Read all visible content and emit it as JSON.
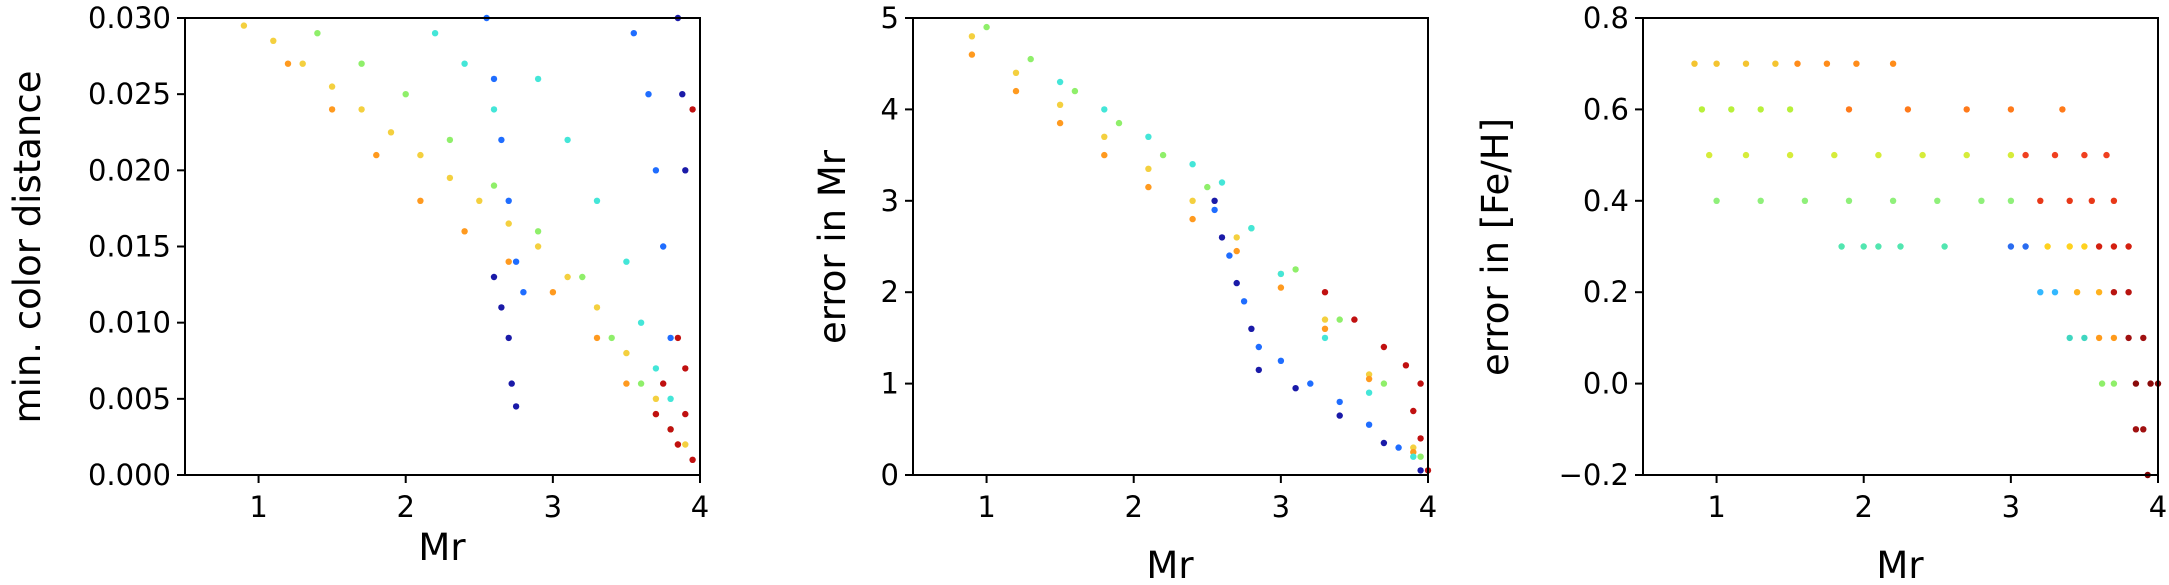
{
  "chart_data": [
    {
      "type": "scatter",
      "xlabel": "Mr",
      "ylabel": "min. color distance",
      "xlim": [
        0.5,
        4.0
      ],
      "ylim": [
        0.0,
        0.03
      ],
      "x_ticks": [
        1,
        2,
        3,
        4
      ],
      "x_tick_labels": [
        "1",
        "2",
        "3",
        "4"
      ],
      "y_ticks": [
        0.0,
        0.005,
        0.01,
        0.015,
        0.02,
        0.025,
        0.03
      ],
      "y_tick_labels": [
        "0.000",
        "0.005",
        "0.010",
        "0.015",
        "0.020",
        "0.025",
        "0.030"
      ],
      "colormap": "jet",
      "series": [
        {
          "color": "#f4d03f",
          "points": [
            [
              0.9,
              0.0295
            ],
            [
              1.1,
              0.0285
            ],
            [
              1.3,
              0.027
            ],
            [
              1.5,
              0.0255
            ],
            [
              1.7,
              0.024
            ],
            [
              1.9,
              0.0225
            ],
            [
              2.1,
              0.021
            ],
            [
              2.3,
              0.0195
            ],
            [
              2.5,
              0.018
            ],
            [
              2.7,
              0.0165
            ],
            [
              2.9,
              0.015
            ],
            [
              3.1,
              0.013
            ],
            [
              3.3,
              0.011
            ],
            [
              3.5,
              0.008
            ],
            [
              3.7,
              0.005
            ],
            [
              3.9,
              0.002
            ]
          ]
        },
        {
          "color": "#ff9a1f",
          "points": [
            [
              1.2,
              0.027
            ],
            [
              1.5,
              0.024
            ],
            [
              1.8,
              0.021
            ],
            [
              2.1,
              0.018
            ],
            [
              2.4,
              0.016
            ],
            [
              2.7,
              0.014
            ],
            [
              3.0,
              0.012
            ],
            [
              3.3,
              0.009
            ],
            [
              3.5,
              0.006
            ],
            [
              3.7,
              0.004
            ],
            [
              3.85,
              0.002
            ]
          ]
        },
        {
          "color": "#8fef6a",
          "points": [
            [
              1.4,
              0.029
            ],
            [
              1.7,
              0.027
            ],
            [
              2.0,
              0.025
            ],
            [
              2.3,
              0.022
            ],
            [
              2.6,
              0.019
            ],
            [
              2.9,
              0.016
            ],
            [
              3.2,
              0.013
            ],
            [
              3.4,
              0.009
            ],
            [
              3.6,
              0.006
            ],
            [
              3.8,
              0.003
            ]
          ]
        },
        {
          "color": "#44e6d8",
          "points": [
            [
              2.2,
              0.029
            ],
            [
              2.4,
              0.027
            ],
            [
              2.6,
              0.024
            ],
            [
              2.9,
              0.026
            ],
            [
              3.1,
              0.022
            ],
            [
              3.3,
              0.018
            ],
            [
              3.5,
              0.014
            ],
            [
              3.6,
              0.01
            ],
            [
              3.7,
              0.007
            ],
            [
              3.8,
              0.005
            ]
          ]
        },
        {
          "color": "#1f6dff",
          "points": [
            [
              2.55,
              0.03
            ],
            [
              2.6,
              0.026
            ],
            [
              2.65,
              0.022
            ],
            [
              2.7,
              0.018
            ],
            [
              2.75,
              0.014
            ],
            [
              2.8,
              0.012
            ],
            [
              3.55,
              0.029
            ],
            [
              3.65,
              0.025
            ],
            [
              3.7,
              0.02
            ],
            [
              3.75,
              0.015
            ],
            [
              3.8,
              0.009
            ]
          ]
        },
        {
          "color": "#1a1aa8",
          "points": [
            [
              2.6,
              0.013
            ],
            [
              2.65,
              0.011
            ],
            [
              2.7,
              0.009
            ],
            [
              2.72,
              0.006
            ],
            [
              2.75,
              0.0045
            ],
            [
              3.85,
              0.03
            ],
            [
              3.88,
              0.025
            ],
            [
              3.9,
              0.02
            ]
          ]
        },
        {
          "color": "#c01010",
          "points": [
            [
              3.7,
              0.004
            ],
            [
              3.8,
              0.003
            ],
            [
              3.85,
              0.002
            ],
            [
              3.9,
              0.004
            ],
            [
              3.95,
              0.001
            ],
            [
              3.75,
              0.006
            ],
            [
              3.9,
              0.007
            ],
            [
              3.85,
              0.009
            ],
            [
              3.95,
              0.024
            ]
          ]
        }
      ]
    },
    {
      "type": "scatter",
      "xlabel": "Mr",
      "ylabel": "error in Mr",
      "xlim": [
        0.5,
        4.0
      ],
      "ylim": [
        0,
        5
      ],
      "x_ticks": [
        1,
        2,
        3,
        4
      ],
      "x_tick_labels": [
        "1",
        "2",
        "3",
        "4"
      ],
      "y_ticks": [
        0,
        1,
        2,
        3,
        4,
        5
      ],
      "y_tick_labels": [
        "0",
        "1",
        "2",
        "3",
        "4",
        "5"
      ],
      "colormap": "jet",
      "series": [
        {
          "color": "#f4d03f",
          "points": [
            [
              0.9,
              4.8
            ],
            [
              1.2,
              4.4
            ],
            [
              1.5,
              4.05
            ],
            [
              1.8,
              3.7
            ],
            [
              2.1,
              3.35
            ],
            [
              2.4,
              3.0
            ],
            [
              2.7,
              2.6
            ],
            [
              3.0,
              2.2
            ],
            [
              3.3,
              1.7
            ],
            [
              3.6,
              1.1
            ],
            [
              3.9,
              0.3
            ]
          ]
        },
        {
          "color": "#ff9a1f",
          "points": [
            [
              0.9,
              4.6
            ],
            [
              1.2,
              4.2
            ],
            [
              1.5,
              3.85
            ],
            [
              1.8,
              3.5
            ],
            [
              2.1,
              3.15
            ],
            [
              2.4,
              2.8
            ],
            [
              2.7,
              2.45
            ],
            [
              3.0,
              2.05
            ],
            [
              3.3,
              1.6
            ],
            [
              3.6,
              1.05
            ],
            [
              3.9,
              0.25
            ]
          ]
        },
        {
          "color": "#8fef6a",
          "points": [
            [
              1.0,
              4.9
            ],
            [
              1.3,
              4.55
            ],
            [
              1.6,
              4.2
            ],
            [
              1.9,
              3.85
            ],
            [
              2.2,
              3.5
            ],
            [
              2.5,
              3.15
            ],
            [
              2.8,
              2.7
            ],
            [
              3.1,
              2.25
            ],
            [
              3.4,
              1.7
            ],
            [
              3.7,
              1.0
            ],
            [
              3.95,
              0.2
            ]
          ]
        },
        {
          "color": "#44e6d8",
          "points": [
            [
              1.5,
              4.3
            ],
            [
              1.8,
              4.0
            ],
            [
              2.1,
              3.7
            ],
            [
              2.4,
              3.4
            ],
            [
              2.6,
              3.2
            ],
            [
              2.8,
              2.7
            ],
            [
              3.0,
              2.2
            ],
            [
              3.3,
              1.5
            ],
            [
              3.6,
              0.9
            ],
            [
              3.9,
              0.2
            ]
          ]
        },
        {
          "color": "#1f6dff",
          "points": [
            [
              2.55,
              2.9
            ],
            [
              2.65,
              2.4
            ],
            [
              2.75,
              1.9
            ],
            [
              2.85,
              1.4
            ],
            [
              3.0,
              1.25
            ],
            [
              3.2,
              1.0
            ],
            [
              3.4,
              0.8
            ],
            [
              3.6,
              0.55
            ],
            [
              3.8,
              0.3
            ]
          ]
        },
        {
          "color": "#1a1aa8",
          "points": [
            [
              2.55,
              3.0
            ],
            [
              2.6,
              2.6
            ],
            [
              2.7,
              2.1
            ],
            [
              2.8,
              1.6
            ],
            [
              2.85,
              1.15
            ],
            [
              3.1,
              0.95
            ],
            [
              3.4,
              0.65
            ],
            [
              3.7,
              0.35
            ],
            [
              3.95,
              0.05
            ]
          ]
        },
        {
          "color": "#c01010",
          "points": [
            [
              3.3,
              2.0
            ],
            [
              3.5,
              1.7
            ],
            [
              3.7,
              1.4
            ],
            [
              3.85,
              1.2
            ],
            [
              3.95,
              1.0
            ],
            [
              3.9,
              0.7
            ],
            [
              3.95,
              0.4
            ],
            [
              4.0,
              0.05
            ]
          ]
        }
      ]
    },
    {
      "type": "scatter",
      "xlabel": "Mr",
      "ylabel": "error in [Fe/H]",
      "xlim": [
        0.5,
        4.0
      ],
      "ylim": [
        -0.2,
        0.8
      ],
      "x_ticks": [
        1,
        2,
        3,
        4
      ],
      "x_tick_labels": [
        "1",
        "2",
        "3",
        "4"
      ],
      "y_ticks": [
        -0.2,
        0.0,
        0.2,
        0.4,
        0.6,
        0.8
      ],
      "y_tick_labels": [
        "−0.2",
        "0.0",
        "0.2",
        "0.4",
        "0.6",
        "0.8"
      ],
      "colormap": "jet",
      "series": [
        {
          "color": "#f4c430",
          "points": [
            [
              0.85,
              0.7
            ],
            [
              1.0,
              0.7
            ],
            [
              1.2,
              0.7
            ],
            [
              1.4,
              0.7
            ]
          ]
        },
        {
          "color": "#ff8c1a",
          "points": [
            [
              1.55,
              0.7
            ],
            [
              1.75,
              0.7
            ],
            [
              1.95,
              0.7
            ],
            [
              2.2,
              0.7
            ]
          ]
        },
        {
          "color": "#b8f03a",
          "points": [
            [
              0.9,
              0.6
            ],
            [
              1.1,
              0.6
            ],
            [
              1.3,
              0.6
            ],
            [
              1.5,
              0.6
            ]
          ]
        },
        {
          "color": "#ff7a1a",
          "points": [
            [
              1.9,
              0.6
            ],
            [
              2.3,
              0.6
            ],
            [
              2.7,
              0.6
            ],
            [
              3.0,
              0.6
            ],
            [
              3.35,
              0.6
            ]
          ]
        },
        {
          "color": "#d6ec3a",
          "points": [
            [
              0.95,
              0.5
            ],
            [
              1.2,
              0.5
            ],
            [
              1.5,
              0.5
            ],
            [
              1.8,
              0.5
            ],
            [
              2.1,
              0.5
            ],
            [
              2.4,
              0.5
            ],
            [
              2.7,
              0.5
            ],
            [
              3.0,
              0.5
            ]
          ]
        },
        {
          "color": "#f04020",
          "points": [
            [
              3.1,
              0.5
            ],
            [
              3.3,
              0.5
            ],
            [
              3.5,
              0.5
            ],
            [
              3.65,
              0.5
            ]
          ]
        },
        {
          "color": "#8ff07a",
          "points": [
            [
              1.0,
              0.4
            ],
            [
              1.3,
              0.4
            ],
            [
              1.6,
              0.4
            ],
            [
              1.9,
              0.4
            ],
            [
              2.2,
              0.4
            ],
            [
              2.5,
              0.4
            ],
            [
              2.8,
              0.4
            ],
            [
              3.0,
              0.4
            ]
          ]
        },
        {
          "color": "#e83818",
          "points": [
            [
              3.2,
              0.4
            ],
            [
              3.4,
              0.4
            ],
            [
              3.55,
              0.4
            ],
            [
              3.7,
              0.4
            ]
          ]
        },
        {
          "color": "#52e6b0",
          "points": [
            [
              1.85,
              0.3
            ],
            [
              2.0,
              0.3
            ],
            [
              2.1,
              0.3
            ],
            [
              2.25,
              0.3
            ],
            [
              2.55,
              0.3
            ]
          ]
        },
        {
          "color": "#2a6cf0",
          "points": [
            [
              3.0,
              0.3
            ],
            [
              3.1,
              0.3
            ]
          ]
        },
        {
          "color": "#ffd21f",
          "points": [
            [
              3.25,
              0.3
            ],
            [
              3.4,
              0.3
            ],
            [
              3.5,
              0.3
            ]
          ]
        },
        {
          "color": "#d42010",
          "points": [
            [
              3.6,
              0.3
            ],
            [
              3.7,
              0.3
            ],
            [
              3.8,
              0.3
            ]
          ]
        },
        {
          "color": "#33b8ff",
          "points": [
            [
              3.2,
              0.2
            ],
            [
              3.3,
              0.2
            ]
          ]
        },
        {
          "color": "#ffb21f",
          "points": [
            [
              3.45,
              0.2
            ],
            [
              3.6,
              0.2
            ]
          ]
        },
        {
          "color": "#b81410",
          "points": [
            [
              3.7,
              0.2
            ],
            [
              3.8,
              0.2
            ]
          ]
        },
        {
          "color": "#3fd6c0",
          "points": [
            [
              3.4,
              0.1
            ],
            [
              3.5,
              0.1
            ]
          ]
        },
        {
          "color": "#ff9a1a",
          "points": [
            [
              3.6,
              0.1
            ],
            [
              3.7,
              0.1
            ]
          ]
        },
        {
          "color": "#a01010",
          "points": [
            [
              3.8,
              0.1
            ],
            [
              3.9,
              0.1
            ]
          ]
        },
        {
          "color": "#8fef6a",
          "points": [
            [
              3.62,
              0.0
            ],
            [
              3.7,
              0.0
            ]
          ]
        },
        {
          "color": "#8a0a0a",
          "points": [
            [
              3.85,
              0.0
            ],
            [
              3.95,
              0.0
            ],
            [
              4.0,
              0.0
            ]
          ]
        },
        {
          "color": "#a01010",
          "points": [
            [
              3.85,
              -0.1
            ],
            [
              3.9,
              -0.1
            ]
          ]
        },
        {
          "color": "#800000",
          "points": [
            [
              3.93,
              -0.2
            ]
          ]
        }
      ]
    }
  ]
}
